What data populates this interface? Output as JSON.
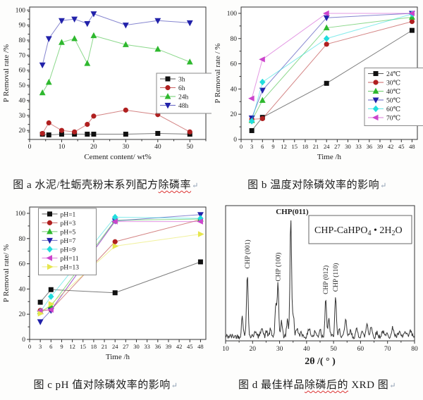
{
  "captions": {
    "a": {
      "pre": "图 a 水泥/牡蛎壳粉末系列配方",
      "wavy": "除磷率",
      "post": "",
      "mark": "↵"
    },
    "b": {
      "pre": "图 b 温度对除磷效率的影响",
      "wavy": "",
      "post": "",
      "mark": "↵"
    },
    "c": {
      "pre": "图 c pH 值对除磷效率的影响",
      "wavy": "",
      "post": "",
      "mark": "↵"
    },
    "d": {
      "pre": "图 d 最佳样品",
      "wavy": "除磷后的",
      "post": " XRD 图",
      "mark": "↵"
    }
  },
  "colors": {
    "black": "#111111",
    "red": "#b02020",
    "green": "#2eb82e",
    "blue": "#2222aa",
    "cyan": "#22dddd",
    "magenta": "#cc44cc",
    "yellow": "#e6e64d",
    "trace": "#333333"
  },
  "chart_data": [
    {
      "id": "a",
      "type": "line",
      "title": "",
      "xlabel": "Cement content/ wt%",
      "ylabel": "P Removal rate /%",
      "xlim": [
        0,
        55
      ],
      "ylim": [
        14,
        102
      ],
      "xticks": [
        0,
        10,
        20,
        30,
        40,
        50
      ],
      "yticks": [
        20,
        30,
        40,
        50,
        60,
        70,
        80,
        90,
        100
      ],
      "xminor": 5,
      "yminor": 5,
      "x": [
        4,
        6,
        10,
        14,
        18,
        20,
        30,
        40,
        50
      ],
      "legend": {
        "fx": 0.72,
        "fy": 0.5,
        "w": 58
      },
      "series": [
        {
          "name": "3h",
          "color": "black",
          "marker": "square",
          "values": [
            17.5,
            17,
            17.5,
            17.5,
            17.5,
            17.5,
            17.5,
            18,
            17.5
          ]
        },
        {
          "name": "6h",
          "color": "red",
          "marker": "circle",
          "values": [
            18,
            25,
            20,
            19,
            24,
            29.5,
            33.5,
            30.5,
            19
          ]
        },
        {
          "name": "24h",
          "color": "green",
          "marker": "triangle-up",
          "values": [
            45,
            52,
            78.5,
            81,
            64.5,
            83,
            77,
            74,
            65.5
          ]
        },
        {
          "name": "48h",
          "color": "blue",
          "marker": "triangle-down",
          "values": [
            63.5,
            81,
            93,
            94,
            91,
            97.5,
            90,
            93,
            91.5
          ]
        }
      ]
    },
    {
      "id": "b",
      "type": "line",
      "title": "",
      "xlabel": "Time /h",
      "ylabel": "P Removal rate / %",
      "xlim": [
        0,
        49.5
      ],
      "ylim": [
        0,
        105
      ],
      "xticks": [
        0,
        3,
        6,
        9,
        12,
        15,
        18,
        21,
        24,
        27,
        30,
        33,
        36,
        39,
        42,
        45,
        48
      ],
      "yticks": [
        0,
        20,
        40,
        60,
        80,
        100
      ],
      "xminor": null,
      "yminor": 10,
      "x": [
        3,
        6,
        24,
        48
      ],
      "legend": {
        "fx": 0.7,
        "fy": 0.46,
        "w": 66
      },
      "series": [
        {
          "name": "24℃",
          "color": "black",
          "marker": "square",
          "values": [
            7,
            17.5,
            44.5,
            86.5
          ]
        },
        {
          "name": "30℃",
          "color": "red",
          "marker": "circle",
          "values": [
            16,
            16.5,
            75.5,
            93.5
          ]
        },
        {
          "name": "40℃",
          "color": "green",
          "marker": "triangle-up",
          "values": [
            15,
            31,
            88.5,
            97
          ]
        },
        {
          "name": "50℃",
          "color": "blue",
          "marker": "triangle-down",
          "values": [
            17,
            39,
            96.5,
            100
          ]
        },
        {
          "name": "60℃",
          "color": "cyan",
          "marker": "diamond",
          "values": [
            14.5,
            45.5,
            80,
            99.5
          ]
        },
        {
          "name": "70℃",
          "color": "magenta",
          "marker": "triangle-left",
          "values": [
            32.5,
            63.5,
            100,
            100
          ]
        }
      ]
    },
    {
      "id": "c",
      "type": "line",
      "title": "",
      "xlabel": "Time /h",
      "ylabel": "P Removal rate/ %",
      "xlim": [
        0,
        49.5
      ],
      "ylim": [
        0,
        105
      ],
      "xticks": [
        0,
        3,
        6,
        9,
        12,
        15,
        18,
        21,
        24,
        27,
        30,
        33,
        36,
        39,
        42,
        45,
        48
      ],
      "yticks": [
        0,
        20,
        40,
        60,
        80,
        100
      ],
      "xminor": null,
      "yminor": 10,
      "x": [
        3,
        6,
        24,
        48
      ],
      "legend": {
        "fx": 0.05,
        "fy": 0.01,
        "w": 58
      },
      "series": [
        {
          "name": "pH=1",
          "color": "black",
          "marker": "square",
          "values": [
            29.5,
            39.5,
            37,
            61.5
          ]
        },
        {
          "name": "pH=3",
          "color": "red",
          "marker": "circle",
          "values": [
            23,
            23.5,
            77.5,
            95
          ]
        },
        {
          "name": "pH=5",
          "color": "green",
          "marker": "triangle-up",
          "values": [
            22,
            26.5,
            94.5,
            95.5
          ]
        },
        {
          "name": "pH=7",
          "color": "blue",
          "marker": "triangle-down",
          "values": [
            14,
            23,
            94,
            99
          ]
        },
        {
          "name": "pH=9",
          "color": "cyan",
          "marker": "diamond",
          "values": [
            22,
            34,
            97,
            96
          ]
        },
        {
          "name": "pH=11",
          "color": "magenta",
          "marker": "triangle-left",
          "values": [
            22.5,
            23.5,
            93.5,
            93.5
          ]
        },
        {
          "name": "pH=13",
          "color": "yellow",
          "marker": "triangle-right",
          "values": [
            20.5,
            28,
            74,
            83.5
          ]
        }
      ]
    },
    {
      "id": "d",
      "type": "line",
      "kind": "xrd",
      "title": "",
      "xlabel": "2θ /( ° )",
      "ylabel": "",
      "xlim": [
        10,
        80
      ],
      "xticks": [
        10,
        20,
        30,
        40,
        50,
        60,
        70,
        80
      ],
      "xminor": 5,
      "baseline": 3.5,
      "noise_amp": 2.0,
      "seed": 42,
      "peaks": [
        [
          16.2,
          16,
          0.3
        ],
        [
          18.05,
          50,
          0.3
        ],
        [
          20.9,
          5,
          0.3
        ],
        [
          23.4,
          8,
          0.35
        ],
        [
          25.2,
          4,
          0.3
        ],
        [
          26.6,
          5,
          0.3
        ],
        [
          28.6,
          26,
          0.28
        ],
        [
          29.4,
          40,
          0.28
        ],
        [
          30.7,
          12,
          0.3
        ],
        [
          32.9,
          13,
          0.3
        ],
        [
          34.15,
          92,
          0.3
        ],
        [
          35.1,
          16,
          0.3
        ],
        [
          36.4,
          7,
          0.3
        ],
        [
          38,
          4,
          0.3
        ],
        [
          41,
          7,
          0.35
        ],
        [
          43.2,
          4,
          0.3
        ],
        [
          45,
          6,
          0.3
        ],
        [
          47.1,
          30,
          0.3
        ],
        [
          48.3,
          13,
          0.3
        ],
        [
          50.75,
          32,
          0.28
        ],
        [
          52.2,
          5,
          0.3
        ],
        [
          54.5,
          12,
          0.35
        ],
        [
          56.3,
          4,
          0.3
        ],
        [
          58.6,
          5,
          0.35
        ],
        [
          60.5,
          4,
          0.3
        ],
        [
          62.4,
          10,
          0.35
        ],
        [
          63.9,
          8,
          0.35
        ],
        [
          66,
          3,
          0.3
        ],
        [
          68.2,
          4,
          0.35
        ],
        [
          70,
          3,
          0.3
        ],
        [
          72,
          7,
          0.35
        ],
        [
          74.3,
          3,
          0.3
        ],
        [
          76.5,
          3,
          0.35
        ],
        [
          78.5,
          4,
          0.35
        ]
      ],
      "peak_labels": [
        {
          "x": 18.05,
          "text": "CHP (001)",
          "rot": true
        },
        {
          "x": 29.4,
          "text": "CHP (100)",
          "rot": true
        },
        {
          "x": 34.15,
          "text": "CHP(011)",
          "rot": false
        },
        {
          "x": 47.1,
          "text": "CHP (012)",
          "rot": true
        },
        {
          "x": 50.75,
          "text": "CHP (110)",
          "rot": true
        }
      ],
      "annotation": {
        "parts": [
          {
            "t": "CHP-CaHPO"
          },
          {
            "t": "4",
            "sub": true
          },
          {
            "t": " • 2H"
          },
          {
            "t": "2",
            "sub": true
          },
          {
            "t": "O"
          }
        ]
      }
    }
  ]
}
